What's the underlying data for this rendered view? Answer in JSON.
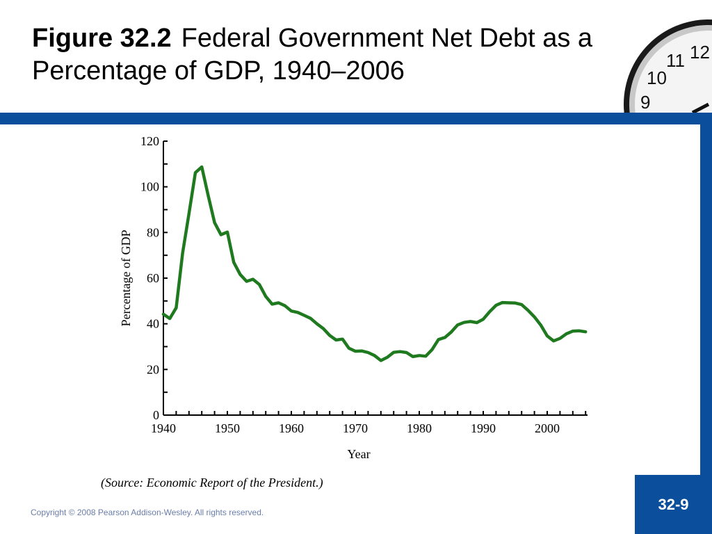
{
  "slide": {
    "title_figure": "Figure 32.2",
    "title_text": "Federal Government Net Debt as a Percentage of GDP, 1940–2006",
    "source": "(Source: Economic Report of the President.)",
    "copyright": "Copyright © 2008 Pearson Addison-Wesley. All rights reserved.",
    "slide_number": "32-9",
    "accent_color": "#0b4e9b",
    "clock_numbers": [
      "12",
      "11",
      "10",
      "9"
    ]
  },
  "chart_data": {
    "type": "line",
    "title": "",
    "xlabel": "Year",
    "ylabel": "Percentage of GDP",
    "xlim": [
      1940,
      2006
    ],
    "ylim": [
      0,
      120
    ],
    "x_ticks": [
      1940,
      1950,
      1960,
      1970,
      1980,
      1990,
      2000
    ],
    "y_ticks": [
      0,
      20,
      40,
      60,
      80,
      100,
      120
    ],
    "line_color": "#1f7a1f",
    "grid": false,
    "series": [
      {
        "x": [
          1940,
          1941,
          1942,
          1943,
          1944,
          1945,
          1946,
          1947,
          1948,
          1949,
          1950,
          1951,
          1952,
          1953,
          1954,
          1955,
          1956,
          1957,
          1958,
          1959,
          1960,
          1961,
          1962,
          1963,
          1964,
          1965,
          1966,
          1967,
          1968,
          1969,
          1970,
          1971,
          1972,
          1973,
          1974,
          1975,
          1976,
          1977,
          1978,
          1979,
          1980,
          1981,
          1982,
          1983,
          1984,
          1985,
          1986,
          1987,
          1988,
          1989,
          1990,
          1991,
          1992,
          1993,
          1994,
          1995,
          1996,
          1997,
          1998,
          1999,
          2000,
          2001,
          2002,
          2003,
          2004,
          2005,
          2006
        ],
        "y": [
          44.2,
          42.3,
          47.0,
          70.9,
          88.3,
          106.2,
          108.7,
          96.2,
          84.3,
          79.0,
          80.2,
          66.9,
          61.6,
          58.6,
          59.5,
          57.2,
          52.0,
          48.6,
          49.2,
          47.9,
          45.6,
          45.0,
          43.7,
          42.4,
          40.0,
          37.9,
          34.9,
          32.9,
          33.3,
          29.3,
          28.0,
          28.1,
          27.4,
          26.1,
          23.9,
          25.3,
          27.5,
          27.8,
          27.4,
          25.6,
          26.1,
          25.8,
          28.7,
          33.1,
          34.0,
          36.4,
          39.5,
          40.6,
          41.0,
          40.5,
          42.0,
          45.3,
          48.1,
          49.3,
          49.2,
          49.1,
          48.4,
          45.9,
          43.0,
          39.4,
          34.7,
          32.5,
          33.6,
          35.6,
          36.8,
          36.9,
          36.5
        ]
      }
    ]
  }
}
